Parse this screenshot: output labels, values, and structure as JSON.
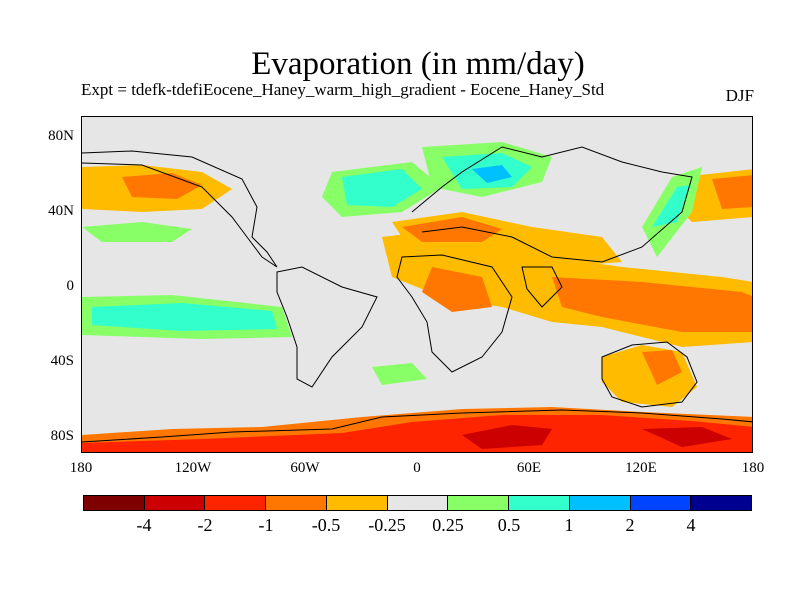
{
  "title": "Evaporation (in mm/day)",
  "subtitle": "Expt = tdefk-tdefiEocene_Haney_warm_high_gradient - Eocene_Haney_Std",
  "season": "DJF",
  "map": {
    "type": "filled-contour-map",
    "projection": "cylindrical-equidistant",
    "lon_range": [
      -180,
      180
    ],
    "lat_range": [
      -90,
      90
    ],
    "y_tick_labels": [
      "80N",
      "40N",
      "0",
      "40S",
      "80S"
    ],
    "x_tick_labels": [
      "180",
      "120W",
      "60W",
      "0",
      "60E",
      "120E",
      "180"
    ],
    "background_color": "#e6e6e6"
  },
  "colorbar": {
    "colors": [
      "#7f0000",
      "#cc0000",
      "#ff2400",
      "#ff7700",
      "#ffbb00",
      "#e6e6e6",
      "#88ff66",
      "#33ffcc",
      "#00c0ff",
      "#0044ff",
      "#000090"
    ],
    "labels": [
      "-4",
      "-2",
      "-1",
      "-0.5",
      "-0.25",
      "0.25",
      "0.5",
      "1",
      "2",
      "4"
    ]
  }
}
